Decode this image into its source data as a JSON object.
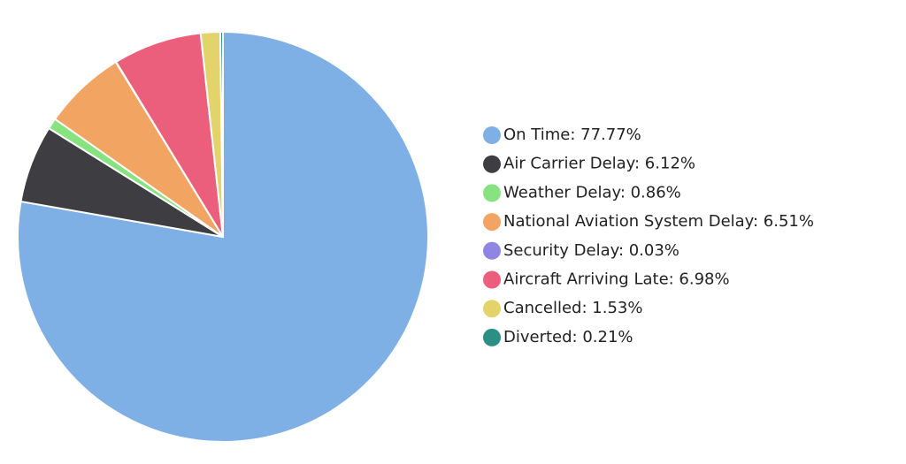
{
  "chart_data": {
    "type": "pie",
    "categories": [
      "On Time: 77.77%",
      "Air Carrier Delay: 6.12%",
      "Weather Delay: 0.86%",
      "National Aviation System Delay: 6.51%",
      "Security Delay: 0.03%",
      "Aircraft Arriving Late: 6.98%",
      "Cancelled: 1.53%",
      "Diverted: 0.21%"
    ],
    "values": [
      77.77,
      6.12,
      0.86,
      6.51,
      0.03,
      6.98,
      1.53,
      0.21
    ],
    "colors": [
      "#7eb0e6",
      "#3d3d42",
      "#86e37f",
      "#f2a463",
      "#8f86e3",
      "#ec5f7c",
      "#e2d36a",
      "#2b8f84"
    ],
    "legend": "right"
  }
}
